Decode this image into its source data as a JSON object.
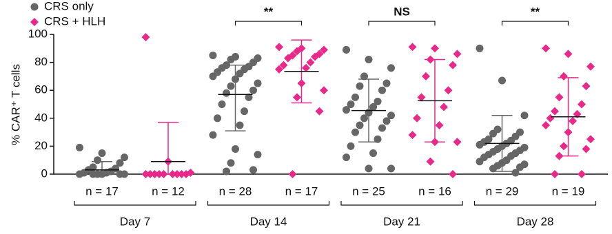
{
  "chart_data": {
    "type": "dot-plot",
    "ylabel": "% CAR⁺ T cells",
    "ylim": [
      0,
      100
    ],
    "yticks": [
      0,
      20,
      40,
      60,
      80,
      100
    ],
    "categories": [
      "Day 7",
      "Day 14",
      "Day 21",
      "Day 28"
    ],
    "significance": [
      null,
      "**",
      "NS",
      "**"
    ],
    "legend": "top-left",
    "series": [
      {
        "name": "CRS only",
        "color": "#666666",
        "marker": "circle",
        "n_labels": [
          "n = 17",
          "n = 28",
          "n = 25",
          "n = 29"
        ],
        "mean": [
          3,
          57,
          45.5,
          22
        ],
        "lower": [
          0,
          31,
          23,
          2
        ],
        "upper": [
          9,
          78,
          68,
          42
        ],
        "values": [
          [
            19,
            15,
            12,
            10,
            8,
            5,
            4,
            3,
            2,
            1,
            1,
            0,
            0,
            0,
            0,
            0,
            0
          ],
          [
            85,
            84,
            83,
            82,
            80,
            78,
            77,
            76,
            75,
            73,
            72,
            70,
            68,
            65,
            63,
            60,
            58,
            55,
            50,
            45,
            40,
            35,
            28,
            18,
            14,
            8,
            3,
            2
          ],
          [
            89,
            82,
            76,
            70,
            65,
            63,
            60,
            55,
            52,
            50,
            48,
            46,
            44,
            42,
            40,
            38,
            35,
            33,
            30,
            25,
            20,
            15,
            12,
            4,
            4
          ],
          [
            90,
            67,
            42,
            32,
            30,
            29,
            27,
            25,
            24,
            23,
            22,
            21,
            20,
            19,
            18,
            17,
            16,
            15,
            14,
            13,
            12,
            10,
            9,
            8,
            7,
            6,
            5,
            4,
            1
          ]
        ]
      },
      {
        "name": "CRS + HLH",
        "color": "#e8298a",
        "marker": "diamond",
        "n_labels": [
          "n = 12",
          "n = 17",
          "n = 16",
          "n = 19"
        ],
        "mean": [
          9,
          73.5,
          52.5,
          41
        ],
        "lower": [
          0,
          51,
          23,
          13
        ],
        "upper": [
          37,
          96,
          82,
          69
        ],
        "values": [
          [
            98,
            9,
            1,
            0,
            0,
            0,
            0,
            0,
            0,
            0,
            0,
            0
          ],
          [
            91,
            90,
            89,
            88,
            86,
            85,
            84,
            83,
            80,
            78,
            76,
            75,
            65,
            60,
            55,
            45,
            0
          ],
          [
            91,
            90,
            86,
            82,
            78,
            70,
            60,
            55,
            48,
            40,
            35,
            28,
            23,
            23,
            9,
            0
          ],
          [
            90,
            86,
            77,
            70,
            63,
            55,
            50,
            45,
            43,
            40,
            38,
            35,
            30,
            25,
            20,
            18,
            13,
            0,
            0
          ]
        ]
      }
    ]
  }
}
